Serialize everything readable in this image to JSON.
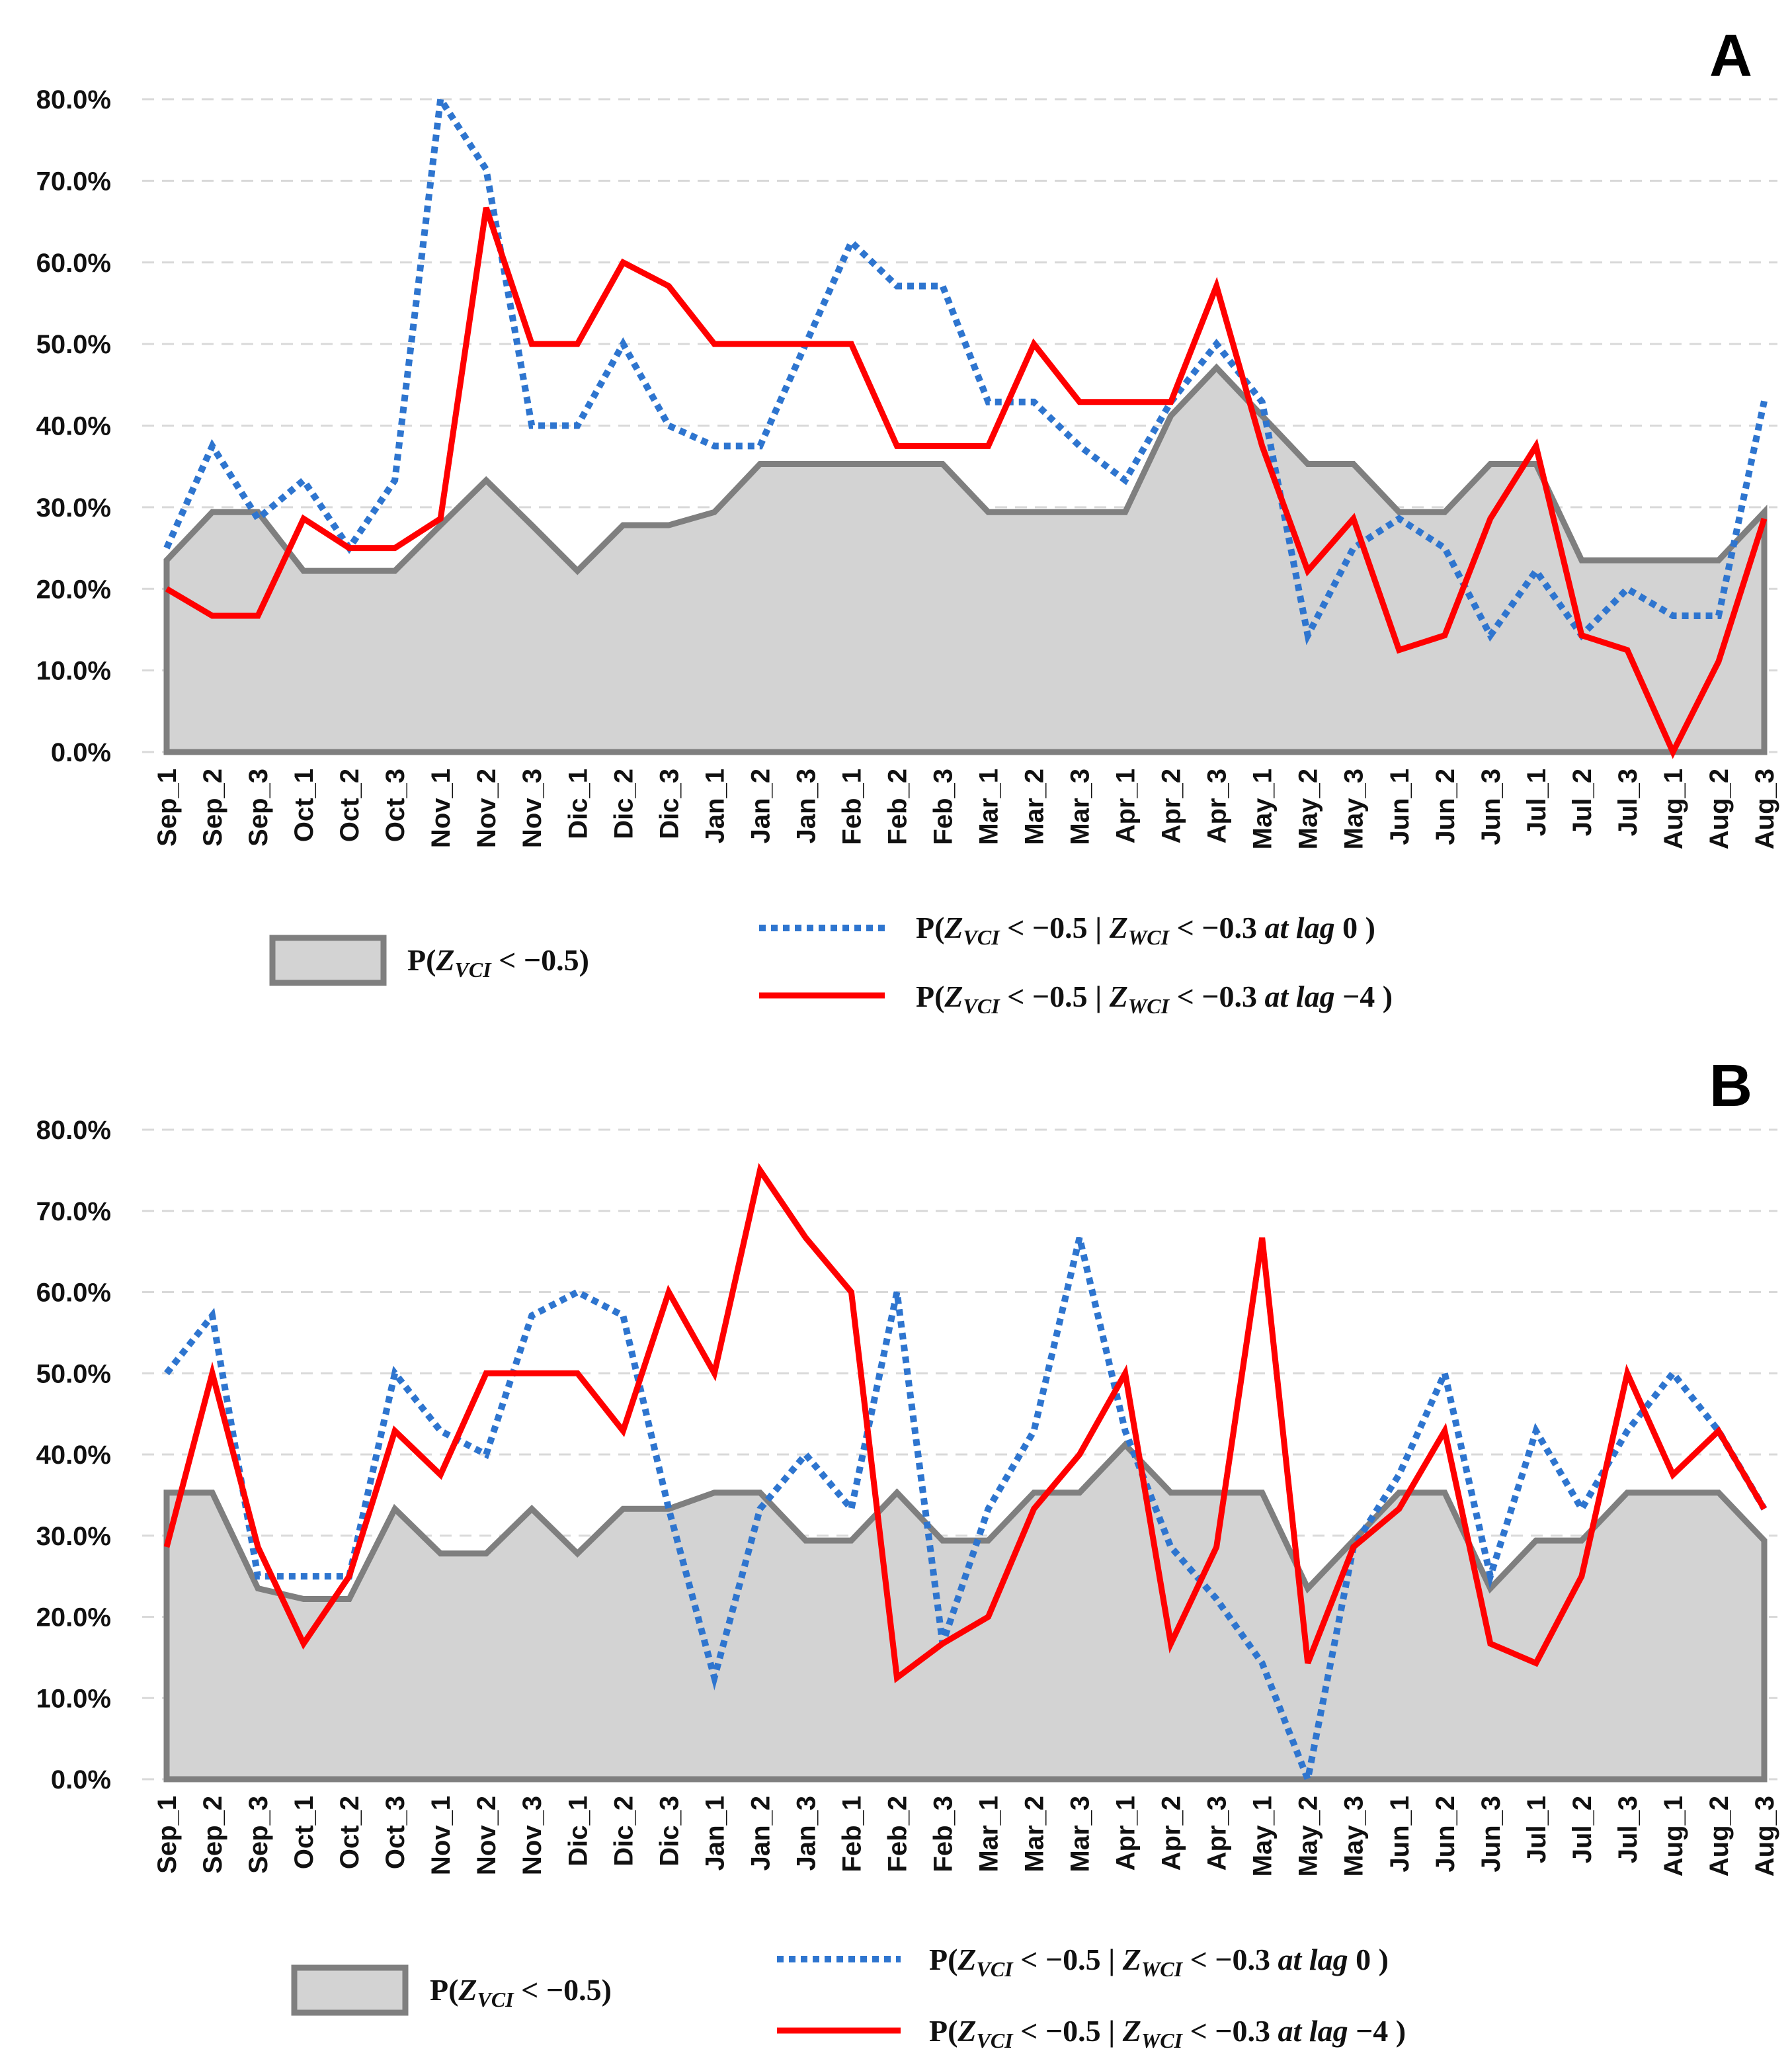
{
  "chart_data": [
    {
      "panel": "A",
      "type": "line",
      "categories": [
        "Sep_1",
        "Sep_2",
        "Sep_3",
        "Oct_1",
        "Oct_2",
        "Oct_3",
        "Nov_1",
        "Nov_2",
        "Nov_3",
        "Dic_1",
        "Dic_2",
        "Dic_3",
        "Jan_1",
        "Jan_2",
        "Jan_3",
        "Feb_1",
        "Feb_2",
        "Feb_3",
        "Mar_1",
        "Mar_2",
        "Mar_3",
        "Apr_1",
        "Apr_2",
        "Apr_3",
        "May_1",
        "May_2",
        "May_3",
        "Jun_1",
        "Jun_2",
        "Jun_3",
        "Jul_1",
        "Jul_2",
        "Jul_3",
        "Aug_1",
        "Aug_2",
        "Aug_3"
      ],
      "y_ticks": [
        "0.0%",
        "10.0%",
        "20.0%",
        "30.0%",
        "40.0%",
        "50.0%",
        "60.0%",
        "70.0%",
        "80.0%"
      ],
      "ylim": [
        0,
        80
      ],
      "grid": true,
      "series": [
        {
          "name": "P(Z_VCI < −0.5)",
          "style": "area",
          "color": "#7f7f7f",
          "fill": "#d3d3d3",
          "values": [
            23.5,
            29.4,
            29.4,
            22.2,
            22.2,
            22.2,
            27.8,
            33.3,
            27.8,
            22.2,
            27.8,
            27.8,
            29.4,
            35.3,
            35.3,
            35.3,
            35.3,
            35.3,
            29.4,
            29.4,
            29.4,
            29.4,
            41.2,
            47.1,
            41.2,
            35.3,
            35.3,
            29.4,
            29.4,
            35.3,
            35.3,
            23.5,
            23.5,
            23.5,
            23.5,
            29.4
          ]
        },
        {
          "name": "P(Z_VCI < −0.5 | Z_WCI < −0.3 at lag 0)",
          "style": "dotted",
          "color": "#2e75cf",
          "values": [
            25,
            37.5,
            28.6,
            33.3,
            25,
            33.3,
            80,
            71.4,
            40,
            40,
            50,
            40,
            37.5,
            37.5,
            50,
            62.5,
            57.1,
            57.1,
            42.9,
            42.9,
            37.5,
            33.3,
            42.9,
            50,
            42.9,
            14.3,
            25,
            28.6,
            25,
            14.3,
            22.2,
            14.3,
            20,
            16.7,
            16.7,
            43
          ]
        },
        {
          "name": "P(Z_VCI < −0.5 | Z_WCI < −0.3 at lag −4)",
          "style": "solid",
          "color": "#ff0000",
          "values": [
            20,
            16.7,
            16.7,
            28.6,
            25,
            25,
            28.6,
            66.7,
            50,
            50,
            60,
            57.1,
            50,
            50,
            50,
            50,
            37.5,
            37.5,
            37.5,
            50,
            42.9,
            42.9,
            42.9,
            57.1,
            37.5,
            22.2,
            28.6,
            12.5,
            14.3,
            28.6,
            37.5,
            14.3,
            12.5,
            0,
            11.1,
            28.6
          ]
        }
      ],
      "legend": {
        "area": {
          "prefix": "P(",
          "var": "Z",
          "sub": "VCI",
          "rest": " < −0.5)"
        },
        "dotted": {
          "prefix": "P(",
          "var": "Z",
          "sub": "VCI",
          "mid": " < −0.5  | ",
          "var2": "Z",
          "sub2": "WCI",
          "rest": " < −0.3  ",
          "lag": "at lag",
          "lagval": " 0 )"
        },
        "solid": {
          "prefix": "P(",
          "var": "Z",
          "sub": "VCI",
          "mid": " < −0.5  | ",
          "var2": "Z",
          "sub2": "WCI",
          "rest": " < −0.3  ",
          "lag": "at lag",
          "lagval": "  −4 )"
        }
      }
    },
    {
      "panel": "B",
      "type": "line",
      "categories": [
        "Sep_1",
        "Sep_2",
        "Sep_3",
        "Oct_1",
        "Oct_2",
        "Oct_3",
        "Nov_1",
        "Nov_2",
        "Nov_3",
        "Dic_1",
        "Dic_2",
        "Dic_3",
        "Jan_1",
        "Jan_2",
        "Jan_3",
        "Feb_1",
        "Feb_2",
        "Feb_3",
        "Mar_1",
        "Mar_2",
        "Mar_3",
        "Apr_1",
        "Apr_2",
        "Apr_3",
        "May_1",
        "May_2",
        "May_3",
        "Jun_1",
        "Jun_2",
        "Jun_3",
        "Jul_1",
        "Jul_2",
        "Jul_3",
        "Aug_1",
        "Aug_2",
        "Aug_3"
      ],
      "y_ticks": [
        "0.0%",
        "10.0%",
        "20.0%",
        "30.0%",
        "40.0%",
        "50.0%",
        "60.0%",
        "70.0%",
        "80.0%"
      ],
      "ylim": [
        0,
        80
      ],
      "grid": true,
      "series": [
        {
          "name": "P(Z_VCI < −0.5)",
          "style": "area",
          "color": "#7f7f7f",
          "fill": "#d3d3d3",
          "values": [
            35.3,
            35.3,
            23.5,
            22.2,
            22.2,
            33.3,
            27.8,
            27.8,
            33.3,
            27.8,
            33.3,
            33.3,
            35.3,
            35.3,
            29.4,
            29.4,
            35.3,
            29.4,
            29.4,
            35.3,
            35.3,
            41.2,
            35.3,
            35.3,
            35.3,
            23.5,
            29.4,
            35.3,
            35.3,
            23.5,
            29.4,
            29.4,
            35.3,
            35.3,
            35.3,
            29.4
          ]
        },
        {
          "name": "P(Z_VCI < −0.5 | Z_WCI < −0.3 at lag 0)",
          "style": "dotted",
          "color": "#2e75cf",
          "values": [
            50,
            57.1,
            25,
            25,
            25,
            50,
            42.9,
            40,
            57.1,
            60,
            57.1,
            33.3,
            12.5,
            33.3,
            40,
            33.3,
            60,
            16.7,
            33.3,
            42.9,
            66.7,
            42.9,
            28.6,
            22.2,
            14.3,
            0,
            28.6,
            37.5,
            50,
            25,
            42.9,
            33.3,
            42.9,
            50,
            42.9,
            33.3
          ]
        },
        {
          "name": "P(Z_VCI < −0.5 | Z_WCI < −0.3 at lag −4)",
          "style": "solid",
          "color": "#ff0000",
          "values": [
            28.6,
            50,
            28.6,
            16.7,
            25,
            42.9,
            37.5,
            50,
            50,
            50,
            42.9,
            60,
            50,
            75,
            66.7,
            60,
            12.5,
            16.7,
            20,
            33.3,
            40,
            50,
            16.7,
            28.6,
            66.7,
            14.3,
            28.6,
            33.3,
            42.9,
            16.7,
            14.3,
            25,
            50,
            37.5,
            42.9,
            33.3
          ]
        }
      ],
      "legend": {
        "area": {
          "prefix": "P(",
          "var": "Z",
          "sub": "VCI",
          "rest": " < −0.5)"
        },
        "dotted": {
          "prefix": "P(",
          "var": "Z",
          "sub": "VCI",
          "mid": " < −0.5  | ",
          "var2": "Z",
          "sub2": "WCI",
          "rest": " < −0.3  ",
          "lag": "at lag",
          "lagval": " 0 )"
        },
        "solid": {
          "prefix": "P(",
          "var": "Z",
          "sub": "VCI",
          "mid": " < −0.5  | ",
          "var2": "Z",
          "sub2": "WCI",
          "rest": " < −0.3  ",
          "lag": "at lag",
          "lagval": "  −4 )"
        }
      }
    }
  ]
}
